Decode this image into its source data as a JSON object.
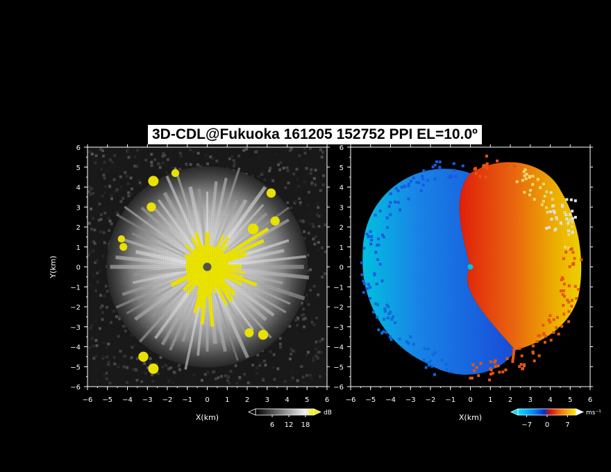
{
  "title": "3D-CDL@Fukuoka 161205 152752 PPI EL=10.0º",
  "chart_data": [
    {
      "type": "heatmap",
      "panel": "left",
      "quantity": "SNR",
      "xlabel": "X(km)",
      "ylabel": "Y(km)",
      "xlim": [
        -6,
        6
      ],
      "ylim": [
        -6,
        6
      ],
      "xticks": [
        -6,
        -5,
        -4,
        -3,
        -2,
        -1,
        0,
        1,
        2,
        3,
        4,
        5,
        6
      ],
      "yticks": [
        -6,
        -5,
        -4,
        -3,
        -2,
        -1,
        0,
        1,
        2,
        3,
        4,
        5,
        6
      ],
      "colorbar": {
        "unit": "dB",
        "ticks": [
          6,
          12,
          18
        ],
        "range": [
          0,
          21
        ],
        "colormap": "grayscale-to-yellow"
      },
      "colors": {
        "saturated": "#f2ea00",
        "background": "#1a1a1a",
        "center_mask": "#555555"
      },
      "hotspots": [
        {
          "x": -2.7,
          "y": 4.3
        },
        {
          "x": -1.6,
          "y": 4.7
        },
        {
          "x": -2.8,
          "y": 3.0
        },
        {
          "x": -4.3,
          "y": 1.4
        },
        {
          "x": -4.2,
          "y": 1.0
        },
        {
          "x": -3.2,
          "y": -4.5
        },
        {
          "x": -2.7,
          "y": -5.1
        },
        {
          "x": 2.1,
          "y": -3.3
        },
        {
          "x": 2.8,
          "y": -3.4
        },
        {
          "x": 3.2,
          "y": 3.7
        },
        {
          "x": 3.4,
          "y": 2.3
        },
        {
          "x": 2.3,
          "y": 1.9
        }
      ]
    },
    {
      "type": "heatmap",
      "panel": "right",
      "quantity": "Doppler velocity",
      "xlabel": "X(km)",
      "xlim": [
        -6,
        6
      ],
      "ylim": [
        -6,
        6
      ],
      "xticks": [
        -6,
        -5,
        -4,
        -3,
        -2,
        -1,
        0,
        1,
        2,
        3,
        4,
        5,
        6
      ],
      "yticks": [
        -6,
        -5,
        -4,
        -3,
        -2,
        -1,
        0,
        1,
        2,
        3,
        4,
        5,
        6
      ],
      "colorbar": {
        "unit": "ms⁻¹",
        "ticks": [
          -7,
          0,
          7
        ],
        "range": [
          -10,
          10
        ],
        "colormap": "cyan-blue-red-yellow-white"
      },
      "colors": {
        "negative": "#1a5ee8",
        "positive": "#ee3a10",
        "far_positive": "#f5c000",
        "near_negative": "#00c8e8"
      }
    }
  ]
}
